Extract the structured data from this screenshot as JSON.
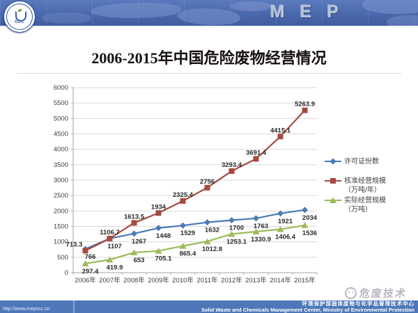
{
  "banner": {
    "brand": "MEP",
    "logo_text": "SCC"
  },
  "slide": {
    "title": "2006-2015年中国危险废物经营情况"
  },
  "chart_data": {
    "type": "line",
    "title": "2006-2015年中国危险废物经营情况",
    "categories": [
      "2006年",
      "2007年",
      "2008年",
      "2009年",
      "2010年",
      "2011年",
      "2012年",
      "2013年",
      "2014年",
      "2015年"
    ],
    "series": [
      {
        "name": "许可证份数",
        "legend_lines": [
          "许可证份数"
        ],
        "marker": "diamond",
        "color": "#4a7ab5",
        "values": [
          766,
          1107,
          1267,
          1448,
          1529,
          1632,
          1700,
          1763,
          1921,
          2034
        ],
        "labels": [
          "766",
          "1107",
          "1267",
          "1448",
          "1529",
          "1632",
          "1700",
          "1763",
          "1921",
          "2034"
        ],
        "label_position": "below"
      },
      {
        "name": "核准经营规模（万吨/年）",
        "legend_lines": [
          "核准经营规模",
          "（万吨/年）"
        ],
        "marker": "square",
        "color": "#a6493f",
        "values": [
          713.3,
          1106.7,
          1613.5,
          1934,
          2325.4,
          2756,
          3293.4,
          3691.4,
          4415.1,
          5263.9
        ],
        "labels": [
          "713.3",
          "1106.7",
          "1613.5",
          "1934",
          "2325.4",
          "2756",
          "3293.4",
          "3691.4",
          "4415.1",
          "5263.9"
        ],
        "label_position": "above"
      },
      {
        "name": "实际经营规模（万吨）",
        "legend_lines": [
          "实际经营规模",
          "（万吨）"
        ],
        "marker": "triangle",
        "color": "#9bbb59",
        "values": [
          297.4,
          419.9,
          653,
          705.1,
          865.4,
          1012.8,
          1253.1,
          1330.9,
          1406.4,
          1536
        ],
        "labels": [
          "297.4",
          "419.9",
          "653",
          "705.1",
          "865.4",
          "1012.8",
          "1253.1",
          "1330.9",
          "1406.4",
          "1536"
        ],
        "label_position": "below"
      }
    ],
    "xlabel": "",
    "ylabel": "",
    "ylim": [
      0,
      6000
    ],
    "ytick_step": 500,
    "grid": true,
    "legend_position": "right"
  },
  "footer": {
    "url": "http://www.mepscc.cn",
    "org_cn": "环境保护部固体废物与化学品管理技术中心",
    "org_en": "Solid Waste and Chemicals Management Center, Ministry of Environmental Protection"
  },
  "watermark": {
    "text": "危废技术"
  }
}
